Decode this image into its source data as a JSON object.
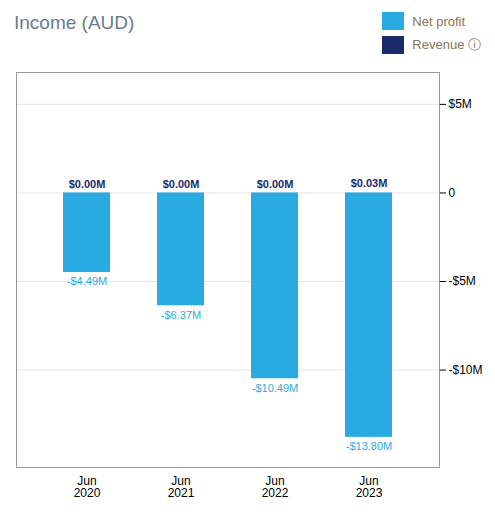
{
  "chart_data": {
    "type": "bar",
    "title": "Income (AUD)",
    "categories": [
      "Jun\n2020",
      "Jun\n2021",
      "Jun\n2022",
      "Jun\n2023"
    ],
    "series": [
      {
        "name": "Net profit",
        "color": "#29ABE2",
        "values": [
          -4.49,
          -6.37,
          -10.49,
          -13.8
        ],
        "value_labels": [
          "-$4.49M",
          "-$6.37M",
          "-$10.49M",
          "-$13.80M"
        ]
      },
      {
        "name": "Revenue ⓘ",
        "color": "#1B2A6B",
        "values": [
          0.0,
          0.0,
          0.0,
          0.03
        ],
        "value_labels": [
          "$0.00M",
          "$0.00M",
          "$0.00M",
          "$0.03M"
        ]
      }
    ],
    "ylim": [
      -15.5,
      6.8
    ],
    "yticks": [
      {
        "value": 5,
        "label": "$5M"
      },
      0,
      {
        "value": -5,
        "label": "-$5M"
      },
      {
        "value": -10,
        "label": "-$10M"
      }
    ],
    "grid": true,
    "legend": "top-right",
    "data_labels": true
  }
}
